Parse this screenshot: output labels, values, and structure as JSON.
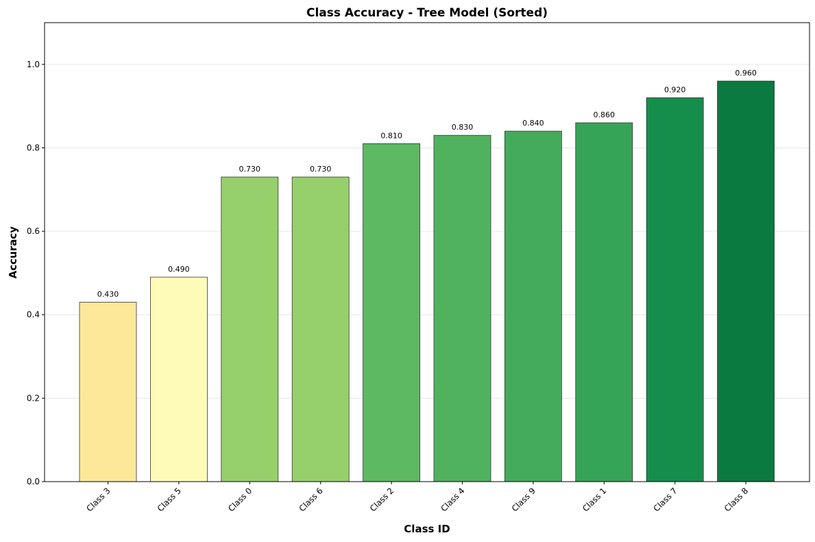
{
  "chart_data": {
    "type": "bar",
    "title": "Class Accuracy - Tree Model (Sorted)",
    "xlabel": "Class ID",
    "ylabel": "Accuracy",
    "categories": [
      "Class 3",
      "Class 5",
      "Class 0",
      "Class 6",
      "Class 2",
      "Class 4",
      "Class 9",
      "Class 1",
      "Class 7",
      "Class 8"
    ],
    "values": [
      0.43,
      0.49,
      0.73,
      0.73,
      0.81,
      0.83,
      0.84,
      0.86,
      0.92,
      0.96
    ],
    "data_labels": [
      "0.430",
      "0.490",
      "0.730",
      "0.730",
      "0.810",
      "0.830",
      "0.840",
      "0.860",
      "0.920",
      "0.960"
    ],
    "colors": [
      "#fde89a",
      "#fefbb9",
      "#96d06a",
      "#96d06a",
      "#5db962",
      "#50b25f",
      "#44ab5b",
      "#36a456",
      "#168e4b",
      "#0a7a41"
    ],
    "ylim": [
      0,
      1.1
    ],
    "yticks": [
      0.0,
      0.2,
      0.4,
      0.6,
      0.8,
      1.0
    ],
    "ytick_labels": [
      "0.0",
      "0.2",
      "0.4",
      "0.6",
      "0.8",
      "1.0"
    ],
    "grid": "y",
    "legend": "none"
  }
}
